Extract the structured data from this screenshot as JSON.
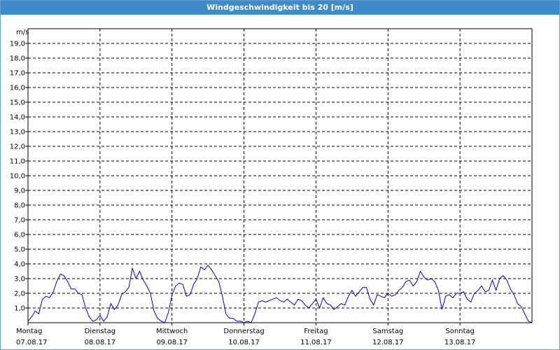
{
  "window": {
    "title": "Windgeschwindigkeit bis 20 [m/s]"
  },
  "chart_data": {
    "type": "line",
    "title": "Windgeschwindigkeit bis 20 [m/s]",
    "ylabel": "m/s",
    "xlabel": "",
    "ylim": [
      0,
      20
    ],
    "xlim": [
      0,
      7
    ],
    "grid": true,
    "y_ticks": [
      "1,0",
      "2,0",
      "3,0",
      "4,0",
      "5,0",
      "6,0",
      "7,0",
      "8,0",
      "9,0",
      "10,0",
      "11,0",
      "12,0",
      "13,0",
      "14,0",
      "15,0",
      "16,0",
      "17,0",
      "18,0",
      "19,0"
    ],
    "x_ticks": [
      {
        "day": "Montag",
        "date": "07.08.17"
      },
      {
        "day": "Dienstag",
        "date": "08.08.17"
      },
      {
        "day": "Mittwoch",
        "date": "09.08.17"
      },
      {
        "day": "Donnerstag",
        "date": "10.08.17"
      },
      {
        "day": "Freitag",
        "date": "11.08.17"
      },
      {
        "day": "Samstag",
        "date": "12.08.17"
      },
      {
        "day": "Sonntag",
        "date": "13.08.17"
      }
    ],
    "series": [
      {
        "color": "#0000cc",
        "x": [
          0,
          0.05,
          0.1,
          0.15,
          0.2,
          0.25,
          0.3,
          0.35,
          0.4,
          0.45,
          0.5,
          0.55,
          0.6,
          0.65,
          0.7,
          0.75,
          0.8,
          0.85,
          0.9,
          0.95,
          1.0,
          1.05,
          1.1,
          1.15,
          1.2,
          1.25,
          1.3,
          1.35,
          1.4,
          1.45,
          1.5,
          1.55,
          1.6,
          1.65,
          1.7,
          1.75,
          1.8,
          1.85,
          1.9,
          1.95,
          2.0,
          2.05,
          2.1,
          2.15,
          2.2,
          2.25,
          2.3,
          2.35,
          2.4,
          2.45,
          2.5,
          2.55,
          2.6,
          2.65,
          2.7,
          2.75,
          2.8,
          2.85,
          2.9,
          2.95,
          3.0,
          3.05,
          3.1,
          3.15,
          3.2,
          3.25,
          3.3,
          3.35,
          3.4,
          3.45,
          3.5,
          3.55,
          3.6,
          3.65,
          3.7,
          3.75,
          3.8,
          3.85,
          3.9,
          3.95,
          4.0,
          4.05,
          4.1,
          4.15,
          4.2,
          4.25,
          4.3,
          4.35,
          4.4,
          4.45,
          4.5,
          4.55,
          4.6,
          4.65,
          4.7,
          4.75,
          4.8,
          4.85,
          4.9,
          4.95,
          5.0,
          5.05,
          5.1,
          5.15,
          5.2,
          5.25,
          5.3,
          5.35,
          5.4,
          5.45,
          5.5,
          5.55,
          5.6,
          5.65,
          5.7,
          5.75,
          5.8,
          5.85,
          5.9,
          5.95,
          6.0,
          6.05,
          6.1,
          6.15,
          6.2,
          6.25,
          6.3,
          6.35,
          6.4,
          6.45,
          6.5,
          6.55,
          6.6,
          6.65,
          6.7,
          6.75,
          6.8,
          6.85,
          6.9,
          6.95,
          7.0
        ],
        "y": [
          0.1,
          0.4,
          0.8,
          0.6,
          1.6,
          1.8,
          1.7,
          2.1,
          2.8,
          3.3,
          3.2,
          2.8,
          2.3,
          2.3,
          2.0,
          1.9,
          1.0,
          0.4,
          0.1,
          0.2,
          0.5,
          0.1,
          0.4,
          1.3,
          0.9,
          1.2,
          1.9,
          2.1,
          2.4,
          3.7,
          3.0,
          3.5,
          2.9,
          2.5,
          2.0,
          0.8,
          0.3,
          0.1,
          0.0,
          0.7,
          1.9,
          2.5,
          2.7,
          2.6,
          1.8,
          1.9,
          2.6,
          3.0,
          3.8,
          3.6,
          3.9,
          3.6,
          3.2,
          2.8,
          1.8,
          0.6,
          0.3,
          0.3,
          0.1,
          0.1,
          0.0,
          0.1,
          0.0,
          0.6,
          1.4,
          1.5,
          1.4,
          1.5,
          1.6,
          1.7,
          1.5,
          1.4,
          1.6,
          1.4,
          1.2,
          1.6,
          1.5,
          1.2,
          1.0,
          1.3,
          1.6,
          1.0,
          1.7,
          1.3,
          1.2,
          0.9,
          1.1,
          1.3,
          1.2,
          1.8,
          2.2,
          1.8,
          2.1,
          2.4,
          2.4,
          1.6,
          1.2,
          1.9,
          1.8,
          1.7,
          2.0,
          1.8,
          1.9,
          2.2,
          2.4,
          2.8,
          2.9,
          2.5,
          2.8,
          3.5,
          3.1,
          2.9,
          3.0,
          2.8,
          2.2,
          0.9,
          1.8,
          1.9,
          1.7,
          2.0,
          2.0,
          2.1,
          1.6,
          1.4,
          2.0,
          2.2,
          2.5,
          2.1,
          2.2,
          2.9,
          2.2,
          3.0,
          3.2,
          2.9,
          2.3,
          1.9,
          1.3,
          1.1,
          0.6,
          0.1,
          0.0
        ]
      }
    ]
  }
}
